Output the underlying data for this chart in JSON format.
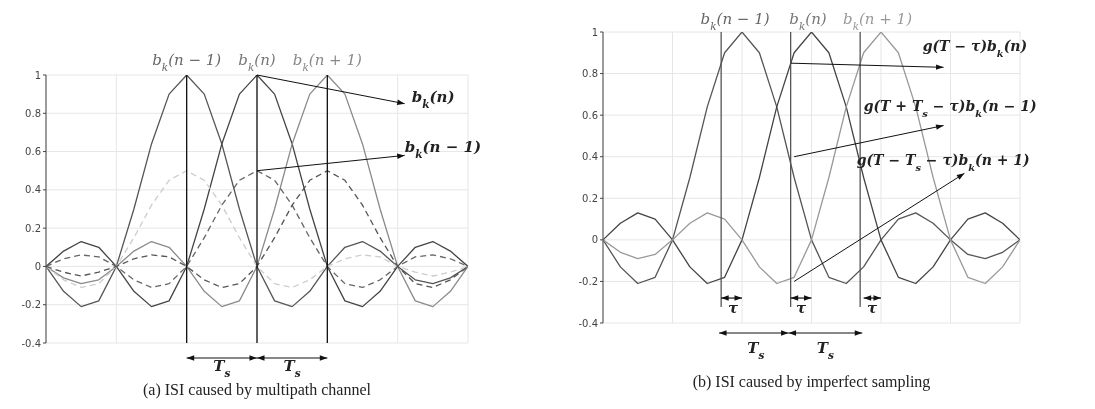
{
  "chart_data": [
    {
      "type": "line",
      "marker": "none",
      "grid": true,
      "tick_labels": "y",
      "categories": [
        null,
        null,
        null,
        null,
        null,
        null,
        null,
        null,
        null,
        null,
        null,
        null,
        null,
        null,
        null,
        null,
        null,
        null,
        null,
        null,
        null,
        null,
        null,
        null,
        null
      ],
      "ylim": [
        -0.4,
        1
      ],
      "yticks": [
        -0.4,
        -0.2,
        0,
        0.2,
        0.4,
        0.6,
        0.8,
        1
      ],
      "series": [
        {
          "color": "#555555",
          "values": [
            0,
            -0.13,
            -0.21,
            -0.18,
            0,
            0.3,
            0.64,
            0.9,
            1,
            0.9,
            0.64,
            0.3,
            0,
            -0.18,
            -0.21,
            -0.13,
            0,
            0.1,
            0.13,
            0.08,
            0,
            -0.07,
            -0.09,
            -0.06,
            0
          ]
        },
        {
          "color": "#444444",
          "values": [
            0,
            0.08,
            0.13,
            0.1,
            0,
            -0.13,
            -0.21,
            -0.18,
            0,
            0.3,
            0.64,
            0.9,
            1,
            0.9,
            0.64,
            0.3,
            0,
            -0.18,
            -0.21,
            -0.13,
            0,
            0.1,
            0.13,
            0.08,
            0
          ]
        },
        {
          "color": "#8a8a8a",
          "values": [
            0,
            -0.06,
            -0.09,
            -0.07,
            0,
            0.08,
            0.13,
            0.1,
            0,
            -0.13,
            -0.21,
            -0.18,
            0,
            0.3,
            0.64,
            0.9,
            1,
            0.9,
            0.64,
            0.3,
            0,
            -0.18,
            -0.21,
            -0.13,
            0
          ]
        },
        {
          "color": "#cccccc",
          "line_style": "dashed",
          "values": [
            0,
            -0.07,
            -0.11,
            -0.09,
            0,
            0.15,
            0.32,
            0.45,
            0.5,
            0.45,
            0.32,
            0.15,
            0,
            -0.09,
            -0.11,
            -0.07,
            0,
            0.04,
            0.06,
            0.05,
            0,
            -0.03,
            -0.05,
            -0.03,
            0
          ]
        },
        {
          "color": "#666666",
          "line_style": "dashed",
          "values": [
            0,
            0.04,
            0.06,
            0.05,
            0,
            -0.07,
            -0.11,
            -0.09,
            0,
            0.15,
            0.32,
            0.45,
            0.5,
            0.45,
            0.32,
            0.15,
            0,
            -0.09,
            -0.11,
            -0.07,
            0,
            0.05,
            0.06,
            0.04,
            0
          ]
        },
        {
          "color": "#555555",
          "line_style": "dashed",
          "values": [
            0,
            -0.03,
            -0.05,
            -0.03,
            0,
            0.04,
            0.06,
            0.05,
            0,
            -0.07,
            -0.11,
            -0.09,
            0,
            0.15,
            0.32,
            0.45,
            0.5,
            0.45,
            0.32,
            0.15,
            0,
            -0.09,
            -0.11,
            -0.07,
            0
          ]
        }
      ],
      "annotations": [
        "b$_{k}$(n − 1)",
        "b$_{k}$(n)",
        "b$_{k}$(n + 1)",
        "b$_{k}$(n)",
        "b$_{k}$(n − 1)",
        "T$_{s}$",
        "T$_{s}$",
        "(a) ISI caused by multipath channel"
      ]
    },
    {
      "type": "line",
      "marker": "none",
      "grid": true,
      "tick_labels": "y",
      "categories": [
        null,
        null,
        null,
        null,
        null,
        null,
        null,
        null,
        null,
        null,
        null,
        null,
        null,
        null,
        null,
        null,
        null,
        null,
        null,
        null,
        null,
        null,
        null,
        null,
        null
      ],
      "ylim": [
        -0.4,
        1
      ],
      "yticks": [
        -0.4,
        -0.2,
        0,
        0.2,
        0.4,
        0.6,
        0.8,
        1
      ],
      "series": [
        {
          "color": "#555555",
          "values": [
            0,
            -0.13,
            -0.21,
            -0.18,
            0,
            0.3,
            0.64,
            0.9,
            1,
            0.9,
            0.64,
            0.3,
            0,
            -0.18,
            -0.21,
            -0.13,
            0,
            0.1,
            0.13,
            0.08,
            0,
            -0.07,
            -0.09,
            -0.06,
            0
          ]
        },
        {
          "color": "#444444",
          "values": [
            0,
            0.08,
            0.13,
            0.1,
            0,
            -0.13,
            -0.21,
            -0.18,
            0,
            0.3,
            0.64,
            0.9,
            1,
            0.9,
            0.64,
            0.3,
            0,
            -0.18,
            -0.21,
            -0.13,
            0,
            0.1,
            0.13,
            0.08,
            0
          ]
        },
        {
          "color": "#999999",
          "values": [
            0,
            -0.06,
            -0.09,
            -0.07,
            0,
            0.08,
            0.13,
            0.1,
            0,
            -0.13,
            -0.21,
            -0.18,
            0,
            0.3,
            0.64,
            0.9,
            1,
            0.9,
            0.64,
            0.3,
            0,
            -0.18,
            -0.21,
            -0.13,
            0
          ]
        }
      ],
      "annotations": [
        "b$_{k}$(n − 1)",
        "b$_{k}$(n)",
        "b$_{k}$(n + 1)",
        "g(T − τ)b$_{k}$(n)",
        "g(T + T$_{s}$ − τ)b$_{k}$(n − 1)",
        "g(T − T$_{s}$ − τ)b$_{k}$(n + 1)",
        "τ",
        "τ",
        "τ",
        "T$_{s}$",
        "T$_{s}$",
        "(b) ISI caused by imperfect sampling"
      ]
    }
  ]
}
